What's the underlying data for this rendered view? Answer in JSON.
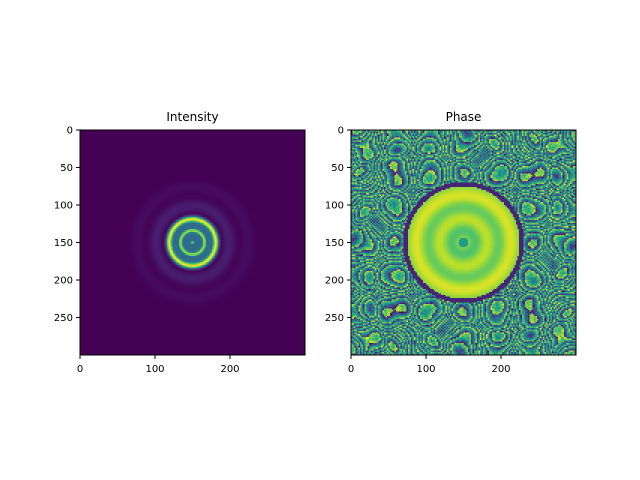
{
  "chart_data": [
    {
      "type": "heatmap",
      "title": "Intensity",
      "colormap": "viridis",
      "extent": [
        0,
        300
      ],
      "xticks": [
        0,
        100,
        200
      ],
      "yticks": [
        0,
        50,
        100,
        150,
        200,
        250
      ],
      "xlabel": "",
      "ylabel": "",
      "center": [
        150,
        150
      ],
      "ring_radii": [
        0,
        15,
        32,
        50,
        68,
        82
      ]
    },
    {
      "type": "heatmap",
      "title": "Phase",
      "colormap": "viridis",
      "extent": [
        0,
        300
      ],
      "xticks": [
        0,
        100,
        200
      ],
      "yticks": [
        0,
        50,
        100,
        150,
        200,
        250
      ],
      "xlabel": "",
      "ylabel": "",
      "center": [
        150,
        150
      ],
      "disk_radius": 75
    }
  ]
}
